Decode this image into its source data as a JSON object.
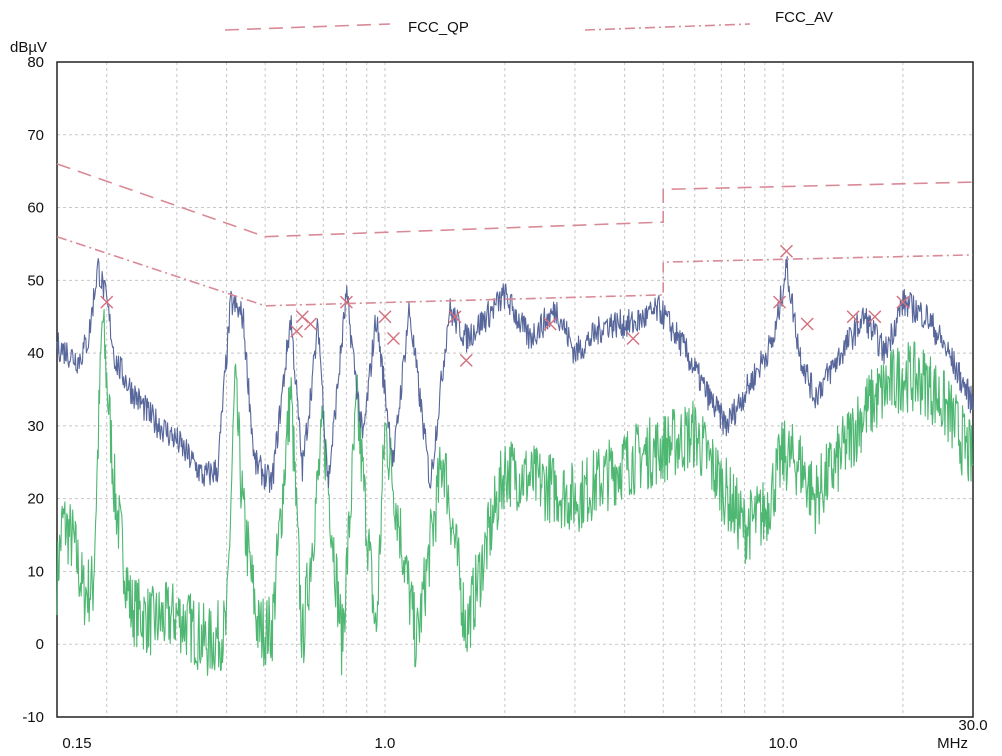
{
  "chart_data": {
    "type": "line",
    "title": "",
    "ylabel": "dBµV",
    "xlabel": "MHz",
    "x_scale": "log",
    "xlim": [
      0.15,
      30.0
    ],
    "ylim": [
      -10,
      80
    ],
    "grid": true,
    "legend_position": "top",
    "y_ticks": [
      80,
      70,
      60,
      50,
      40,
      30,
      20,
      10,
      0,
      -10
    ],
    "y_tick_labels": [
      "80",
      "70",
      "60",
      "50",
      "40",
      "30",
      "20",
      "10",
      "0",
      "-10"
    ],
    "x_ticks": [
      0.15,
      1.0,
      10.0,
      30.0
    ],
    "x_tick_labels": [
      "0.15",
      "1.0",
      "10.0",
      "30.0"
    ],
    "legend": [
      {
        "name": "FCC_QP",
        "color": "#d98a97",
        "dash": "14,8"
      },
      {
        "name": "FCC_AV",
        "color": "#d98a97",
        "dash": "10,4,2,4"
      }
    ],
    "limit_lines": [
      {
        "name": "FCC_QP",
        "color": "#d98a97",
        "dash": "14,8",
        "points": [
          [
            0.15,
            66
          ],
          [
            0.5,
            56
          ],
          [
            5.0,
            58
          ],
          [
            5.0,
            62.5
          ],
          [
            30.0,
            63.5
          ]
        ]
      },
      {
        "name": "FCC_AV",
        "color": "#d98a97",
        "dash": "10,4,2,4",
        "points": [
          [
            0.15,
            56
          ],
          [
            0.5,
            46.5
          ],
          [
            5.0,
            48
          ],
          [
            5.0,
            52.5
          ],
          [
            30.0,
            53.5
          ]
        ]
      }
    ],
    "series": [
      {
        "color": "#4f5f96",
        "band": 2,
        "points": [
          [
            0.15,
            41
          ],
          [
            0.16,
            40
          ],
          [
            0.17,
            39
          ],
          [
            0.18,
            42
          ],
          [
            0.19,
            52
          ],
          [
            0.2,
            47
          ],
          [
            0.21,
            39
          ],
          [
            0.23,
            35
          ],
          [
            0.26,
            31
          ],
          [
            0.3,
            28
          ],
          [
            0.35,
            23
          ],
          [
            0.38,
            24
          ],
          [
            0.41,
            47
          ],
          [
            0.44,
            45
          ],
          [
            0.47,
            25
          ],
          [
            0.52,
            22
          ],
          [
            0.58,
            45
          ],
          [
            0.62,
            24
          ],
          [
            0.68,
            44
          ],
          [
            0.72,
            22
          ],
          [
            0.8,
            48
          ],
          [
            0.88,
            28
          ],
          [
            0.95,
            45
          ],
          [
            1.05,
            25
          ],
          [
            1.15,
            46
          ],
          [
            1.3,
            22
          ],
          [
            1.45,
            46
          ],
          [
            1.6,
            42
          ],
          [
            1.8,
            45
          ],
          [
            2.0,
            48
          ],
          [
            2.3,
            42
          ],
          [
            2.7,
            46
          ],
          [
            3.0,
            40
          ],
          [
            3.6,
            44
          ],
          [
            4.2,
            44
          ],
          [
            4.9,
            46
          ],
          [
            5.6,
            41
          ],
          [
            6.5,
            34
          ],
          [
            7.2,
            30
          ],
          [
            8.3,
            36
          ],
          [
            9.5,
            42
          ],
          [
            10.2,
            52
          ],
          [
            11.0,
            40
          ],
          [
            12.0,
            34
          ],
          [
            14.0,
            40
          ],
          [
            16.0,
            45
          ],
          [
            18.0,
            40
          ],
          [
            20.0,
            47
          ],
          [
            23.0,
            45
          ],
          [
            26.0,
            40
          ],
          [
            30.0,
            33
          ]
        ]
      },
      {
        "color": "#44b36a",
        "band": 5,
        "points": [
          [
            0.15,
            9
          ],
          [
            0.155,
            17
          ],
          [
            0.165,
            14
          ],
          [
            0.175,
            7
          ],
          [
            0.185,
            8
          ],
          [
            0.195,
            45
          ],
          [
            0.21,
            20
          ],
          [
            0.23,
            5
          ],
          [
            0.26,
            3
          ],
          [
            0.3,
            4
          ],
          [
            0.33,
            2
          ],
          [
            0.36,
            0
          ],
          [
            0.4,
            2
          ],
          [
            0.42,
            36
          ],
          [
            0.44,
            18
          ],
          [
            0.48,
            2
          ],
          [
            0.52,
            2
          ],
          [
            0.58,
            35
          ],
          [
            0.62,
            0
          ],
          [
            0.7,
            30
          ],
          [
            0.78,
            0
          ],
          [
            0.85,
            33
          ],
          [
            0.95,
            1
          ],
          [
            1.0,
            30
          ],
          [
            1.2,
            0
          ],
          [
            1.4,
            26
          ],
          [
            1.6,
            2
          ],
          [
            2.0,
            24
          ],
          [
            2.5,
            22
          ],
          [
            3.0,
            20
          ],
          [
            4.0,
            25
          ],
          [
            5.0,
            27
          ],
          [
            6.0,
            29
          ],
          [
            7.0,
            22
          ],
          [
            8.0,
            16
          ],
          [
            9.0,
            18
          ],
          [
            10.0,
            26
          ],
          [
            11.0,
            25
          ],
          [
            12.0,
            20
          ],
          [
            14.0,
            26
          ],
          [
            16.0,
            32
          ],
          [
            18.0,
            35
          ],
          [
            20.0,
            37
          ],
          [
            23.0,
            36
          ],
          [
            26.0,
            32
          ],
          [
            30.0,
            25
          ]
        ]
      }
    ],
    "markers": {
      "color": "#d4707e",
      "points": [
        [
          0.2,
          47
        ],
        [
          0.6,
          43
        ],
        [
          0.62,
          45
        ],
        [
          0.65,
          44
        ],
        [
          0.8,
          47
        ],
        [
          1.0,
          45
        ],
        [
          1.05,
          42
        ],
        [
          1.5,
          45
        ],
        [
          1.6,
          39
        ],
        [
          2.6,
          44
        ],
        [
          4.2,
          42
        ],
        [
          9.8,
          47
        ],
        [
          10.2,
          54
        ],
        [
          11.5,
          44
        ],
        [
          15.0,
          45
        ],
        [
          17.0,
          45
        ],
        [
          20.0,
          47
        ]
      ]
    }
  }
}
